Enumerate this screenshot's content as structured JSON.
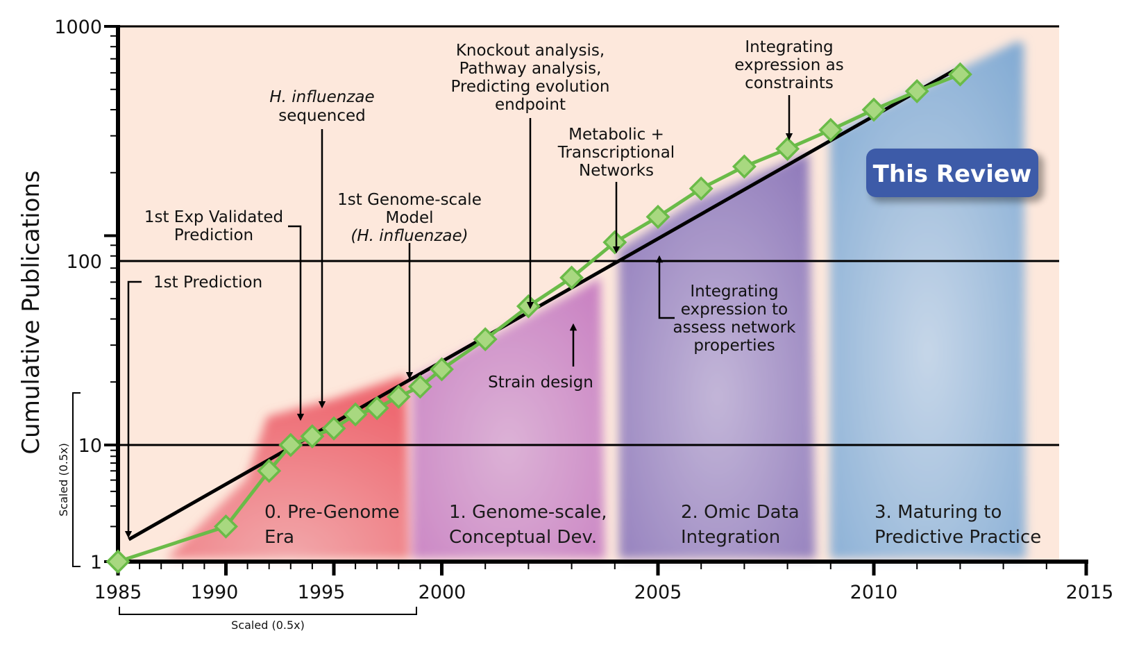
{
  "chart_data": {
    "type": "line",
    "ylabel": "Cumulative Publications",
    "xlabel": "",
    "x_ticks": [
      "1985",
      "1990",
      "1995",
      "2000",
      "2005",
      "2010",
      "2015"
    ],
    "y_ticks": [
      "1",
      "10",
      "100",
      "1000"
    ],
    "y_scale": "log (broken: 1–10 scaled 0.5x)",
    "xlim": [
      1985,
      2015
    ],
    "ylim": [
      1,
      1000
    ],
    "x_scaled_note": "Scaled (0.5x)",
    "y_scaled_note": "Scaled (0.5x)",
    "grid": "horizontal at 10, 100, 1000",
    "series": [
      {
        "type": "line-marker",
        "color": "#6abb48",
        "marker_color": "#a8d880",
        "x": [
          1985,
          1990,
          1992,
          1993,
          1994,
          1995,
          1996,
          1997,
          1998,
          1999,
          2000,
          2001,
          2002,
          2003,
          2004,
          2005,
          2006,
          2007,
          2008,
          2009,
          2010,
          2011,
          2012
        ],
        "y": [
          1,
          2,
          6,
          10,
          11,
          12,
          14,
          15,
          17,
          19,
          23,
          32,
          46,
          63,
          93,
          123,
          168,
          214,
          260,
          320,
          400,
          490,
          590
        ]
      },
      {
        "type": "trendline",
        "color": "#000000",
        "x": [
          1985.5,
          2012
        ],
        "y": [
          1.55,
          640
        ]
      }
    ],
    "eras": [
      {
        "label_line1": "0. Pre-Genome",
        "label_line2": "Era",
        "x_start": 1986,
        "x_end": 1999,
        "color": "#ee6a72"
      },
      {
        "label_line1": "1. Genome-scale,",
        "label_line2": "Conceptual Dev.",
        "x_start": 1999,
        "x_end": 2004,
        "color": "#c77cc0"
      },
      {
        "label_line1": "2. Omic Data",
        "label_line2": "Integration",
        "x_start": 2004,
        "x_end": 2009,
        "color": "#8b75b8"
      },
      {
        "label_line1": "3. Maturing to",
        "label_line2": "Predictive Practice",
        "x_start": 2009,
        "x_end": 2014,
        "color": "#7ea8d2"
      }
    ],
    "annotations": {
      "first_prediction": "1st Prediction",
      "exp_validated_1": "1st Exp Validated",
      "exp_validated_2": "Prediction",
      "hinf_seq_1": "H. influenzae",
      "hinf_seq_2": "sequenced",
      "genome_model_1": "1st Genome-scale",
      "genome_model_2": "Model",
      "genome_model_3": "(H. influenzae)",
      "knockout_1": "Knockout analysis,",
      "knockout_2": "Pathway analysis,",
      "knockout_3": "Predicting evolution",
      "knockout_4": "endpoint",
      "strain_design": "Strain design",
      "metab_1": "Metabolic +",
      "metab_2": "Transcriptional",
      "metab_3": "Networks",
      "int_assess_1": "Integrating",
      "int_assess_2": "expression to",
      "int_assess_3": "assess network",
      "int_assess_4": "properties",
      "int_constraints_1": "Integrating",
      "int_constraints_2": "expression as",
      "int_constraints_3": "constraints",
      "this_review": "This Review"
    },
    "colors": {
      "plot_background": "#fde8dc",
      "review_badge": "#3d5ba8",
      "line": "#6abb48"
    }
  }
}
